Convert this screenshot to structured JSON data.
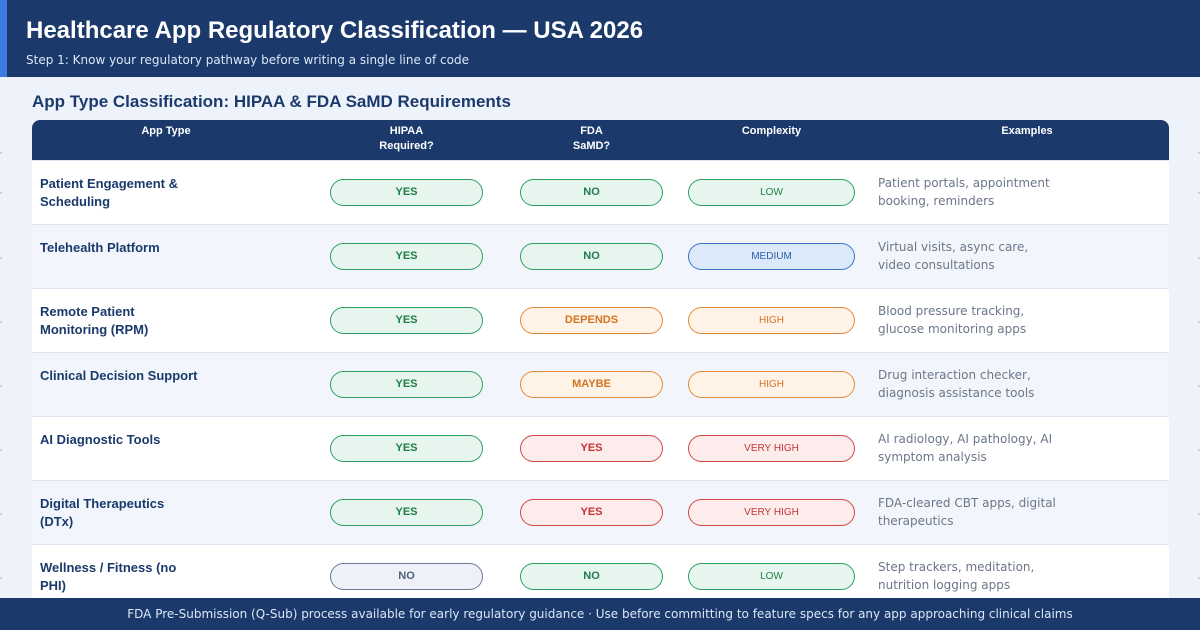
{
  "header": {
    "title": "Healthcare App Regulatory Classification — USA 2026",
    "subtitle": "Step 1: Know your regulatory pathway before writing a single line of code"
  },
  "section_title": "App Type Classification: HIPAA & FDA SaMD Requirements",
  "table": {
    "columns": [
      "App Type",
      "HIPAA\nRequired?",
      "FDA\nSaMD?",
      "Complexity",
      "Examples"
    ],
    "rows": [
      {
        "app_type": "Patient Engagement & Scheduling",
        "hipaa": {
          "label": "YES",
          "status": "green"
        },
        "fda": {
          "label": "NO",
          "status": "green"
        },
        "complexity": {
          "label": "LOW",
          "status": "green"
        },
        "examples": "Patient portals, appointment booking, reminders"
      },
      {
        "app_type": "Telehealth Platform",
        "hipaa": {
          "label": "YES",
          "status": "green"
        },
        "fda": {
          "label": "NO",
          "status": "green"
        },
        "complexity": {
          "label": "MEDIUM",
          "status": "blue"
        },
        "examples": "Virtual visits, async care, video consultations"
      },
      {
        "app_type": "Remote Patient Monitoring (RPM)",
        "hipaa": {
          "label": "YES",
          "status": "green"
        },
        "fda": {
          "label": "DEPENDS",
          "status": "orange"
        },
        "complexity": {
          "label": "HIGH",
          "status": "orange"
        },
        "examples": "Blood pressure tracking, glucose monitoring apps"
      },
      {
        "app_type": "Clinical Decision Support",
        "hipaa": {
          "label": "YES",
          "status": "green"
        },
        "fda": {
          "label": "MAYBE",
          "status": "orange"
        },
        "complexity": {
          "label": "HIGH",
          "status": "orange"
        },
        "examples": "Drug interaction checker, diagnosis assistance tools"
      },
      {
        "app_type": "AI Diagnostic Tools",
        "hipaa": {
          "label": "YES",
          "status": "green"
        },
        "fda": {
          "label": "YES",
          "status": "red"
        },
        "complexity": {
          "label": "VERY HIGH",
          "status": "red"
        },
        "examples": "AI radiology, AI pathology, AI symptom analysis"
      },
      {
        "app_type": "Digital Therapeutics (DTx)",
        "hipaa": {
          "label": "YES",
          "status": "green"
        },
        "fda": {
          "label": "YES",
          "status": "red"
        },
        "complexity": {
          "label": "VERY HIGH",
          "status": "red"
        },
        "examples": "FDA-cleared CBT apps, digital therapeutics"
      },
      {
        "app_type": "Wellness / Fitness (no PHI)",
        "hipaa": {
          "label": "NO",
          "status": "grey"
        },
        "fda": {
          "label": "NO",
          "status": "green"
        },
        "complexity": {
          "label": "LOW",
          "status": "green"
        },
        "examples": "Step trackers, meditation, nutrition logging apps"
      }
    ]
  },
  "footer": "FDA Pre-Submission (Q-Sub) process available for early regulatory guidance · Use before committing to feature specs for any app approaching clinical claims",
  "colors": {
    "header_bg": "#1b3a6b",
    "accent": "#3c7be0",
    "green": "#2f9e62",
    "blue": "#3c73c9",
    "orange": "#e18a3b",
    "red": "#d44747",
    "grey": "#6c7a96"
  }
}
